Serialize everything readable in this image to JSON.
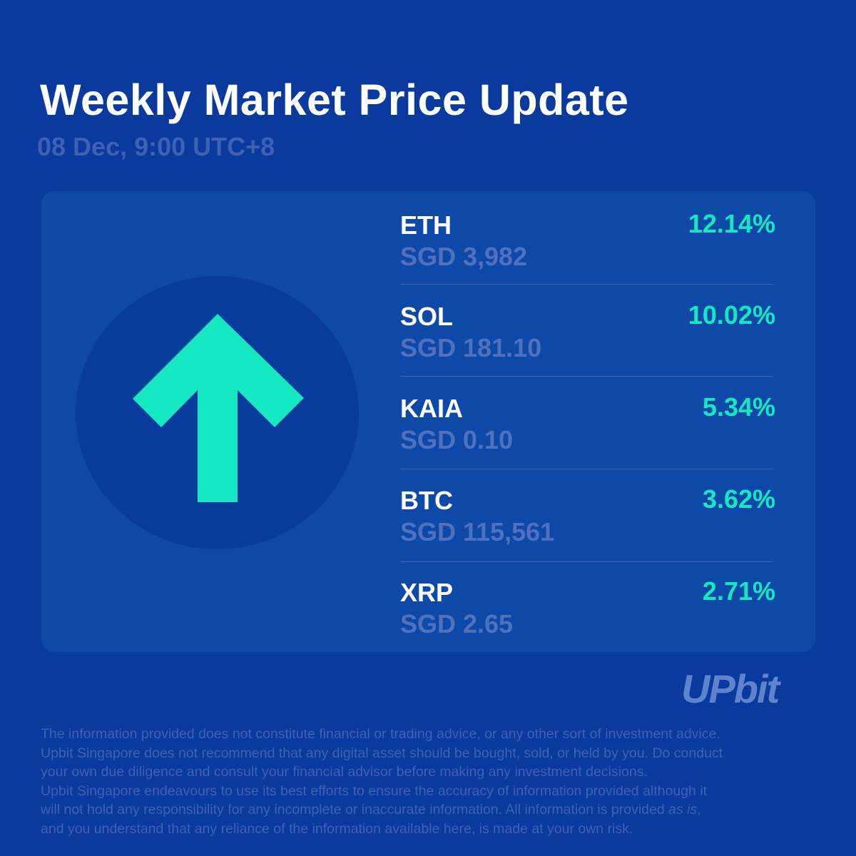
{
  "header": {
    "title": "Weekly Market Price Update",
    "date": "08 Dec, 9:00 UTC+8"
  },
  "hero": {
    "icon": "up-arrow-icon",
    "arrow_color": "#14e8c1"
  },
  "assets": [
    {
      "symbol": "ETH",
      "price": "SGD 3,982",
      "change": "12.14%"
    },
    {
      "symbol": "SOL",
      "price": "SGD 181.10",
      "change": "10.02%"
    },
    {
      "symbol": "KAIA",
      "price": "SGD 0.10",
      "change": "5.34%"
    },
    {
      "symbol": "BTC",
      "price": "SGD 115,561",
      "change": "3.62%"
    },
    {
      "symbol": "XRP",
      "price": "SGD 2.65",
      "change": "2.71%"
    }
  ],
  "brand": {
    "logo_text": "UPbit"
  },
  "disclaimer": {
    "line1": "The information provided does not constitute financial or trading advice, or any other sort of investment advice.",
    "line2": "Upbit Singapore does not recommend that any digital asset should be bought, sold, or held by you. Do conduct",
    "line3": "your own due diligence and consult your financial advisor before making any investment decisions.",
    "line4": "Upbit Singapore endeavours to use its best efforts to ensure the accuracy of information provided although it",
    "line5a": "will not hold any responsibility for any incomplete or inaccurate information. All information is provided ",
    "line5_em": "as is",
    "line5b": ",",
    "line6": "and you understand that any reliance of the information available here, is made at your own risk."
  },
  "colors": {
    "background": "#0a3a9e",
    "card": "#0f49a8",
    "accent": "#14e8c1",
    "muted": "#4e72bf"
  }
}
